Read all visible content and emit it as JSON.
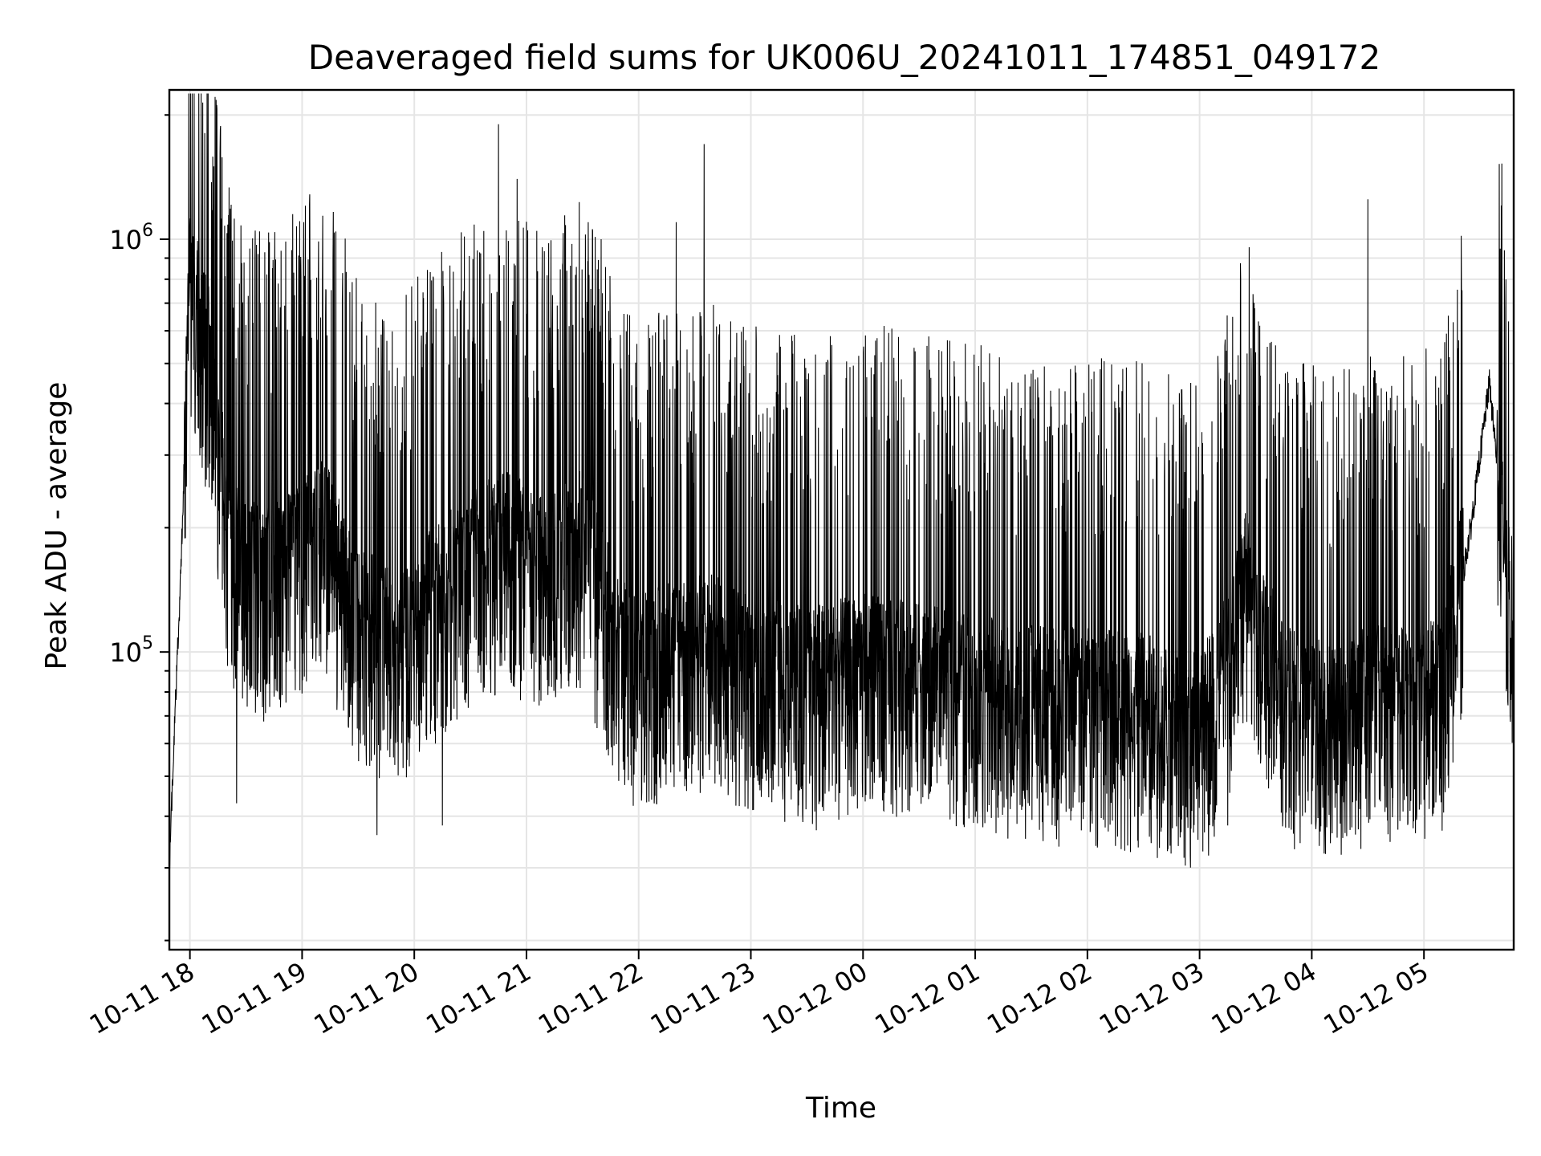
{
  "chart_data": {
    "type": "line",
    "title": "Deaveraged field sums for UK006U_20241011_174851_049172",
    "xlabel": "Time",
    "ylabel": "Peak ADU - average",
    "yscale": "log",
    "xlim": [
      "2024-10-11 17:49",
      "2024-10-12 05:48"
    ],
    "ylim": [
      19000,
      2300000
    ],
    "grid": true,
    "legend": "none",
    "line_color": "#000000",
    "x_ticks": [
      "10-11 18",
      "10-11 19",
      "10-11 20",
      "10-11 21",
      "10-11 22",
      "10-11 23",
      "10-12 00",
      "10-12 01",
      "10-12 02",
      "10-12 03",
      "10-12 04",
      "10-12 05"
    ],
    "x_tick_hours": [
      18,
      19,
      20,
      21,
      22,
      23,
      24,
      25,
      26,
      27,
      28,
      29
    ],
    "y_ticks_major": [
      {
        "value": 100000,
        "base": "10",
        "exp": "5"
      },
      {
        "value": 1000000,
        "base": "10",
        "exp": "6"
      }
    ],
    "y_ticks_minor": [
      20000,
      30000,
      40000,
      50000,
      60000,
      70000,
      80000,
      90000,
      200000,
      300000,
      400000,
      500000,
      600000,
      700000,
      800000,
      900000,
      2000000
    ],
    "series": [
      {
        "envelope_time": [
          "17:49",
          "17:52",
          "17:55",
          "18:00",
          "18:10",
          "18:20",
          "18:30",
          "18:50",
          "19:10",
          "19:30",
          "19:50",
          "20:10",
          "20:30",
          "20:50",
          "21:10",
          "21:30",
          "21:50",
          "22:00",
          "22:20",
          "22:40",
          "23:00",
          "23:20",
          "23:40",
          "00:00",
          "00:30",
          "01:00",
          "01:30",
          "02:00",
          "02:30",
          "02:55",
          "03:10",
          "03:25",
          "03:45",
          "04:10",
          "04:30",
          "04:50",
          "05:10",
          "05:25",
          "05:35",
          "05:48"
        ],
        "typical_value": [
          30000,
          70000,
          150000,
          800000,
          500000,
          200000,
          150000,
          150000,
          200000,
          120000,
          100000,
          130000,
          160000,
          180000,
          150000,
          180000,
          100000,
          90000,
          100000,
          100000,
          90000,
          85000,
          85000,
          90000,
          85000,
          80000,
          75000,
          75000,
          72000,
          65000,
          75000,
          150000,
          75000,
          70000,
          75000,
          75000,
          80000,
          200000,
          450000,
          110000
        ],
        "peaks": [
          {
            "time": "18:40",
            "value": 930000
          },
          {
            "time": "18:55",
            "value": 1150000
          },
          {
            "time": "20:45",
            "value": 1900000
          },
          {
            "time": "20:55",
            "value": 1400000
          },
          {
            "time": "21:40",
            "value": 1000000
          },
          {
            "time": "22:20",
            "value": 1100000
          },
          {
            "time": "22:35",
            "value": 1700000
          },
          {
            "time": "04:30",
            "value": 1250000
          },
          {
            "time": "05:20",
            "value": 750000
          }
        ],
        "troughs": [
          {
            "time": "18:25",
            "value": 43000
          },
          {
            "time": "19:40",
            "value": 36000
          },
          {
            "time": "20:15",
            "value": 38000
          },
          {
            "time": "23:35",
            "value": 37000
          },
          {
            "time": "02:55",
            "value": 32000
          },
          {
            "time": "03:15",
            "value": 38000
          }
        ]
      }
    ]
  }
}
